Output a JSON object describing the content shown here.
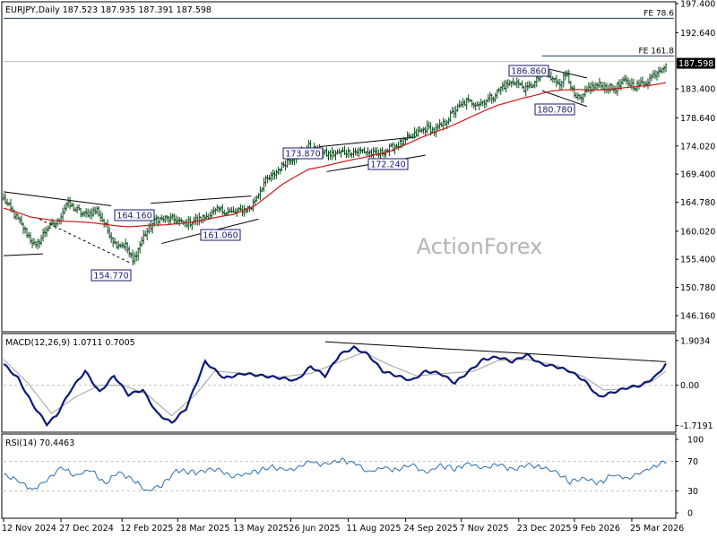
{
  "colors": {
    "bar": "#0a4a1a",
    "ma": "#d01818",
    "macd": "#0a1a78",
    "signal": "#a0a0a0",
    "rsi": "#2a6fb0",
    "label_fill": "#ffffff",
    "label_text": "#1a1a6e",
    "label_border": "#1a1a6e",
    "pattern_line": "#000000",
    "grid": "#c0c0c0",
    "watermark": "#b4b4b4"
  },
  "chart_data": [
    {
      "type": "ohlc",
      "title": "EURJPY,Daily  187.523 187.935 187.391 187.598",
      "symbol": "EURJPY",
      "timeframe": "Daily",
      "ohlc_last": {
        "open": 187.523,
        "high": 187.935,
        "low": 187.391,
        "close": 187.598
      },
      "last_price_label": "187.598",
      "watermark": "ActionForex",
      "ylim": [
        143.5,
        197.7
      ],
      "y_ticks": [
        "197.400",
        "192.640",
        "187.880",
        "183.400",
        "178.640",
        "174.020",
        "169.400",
        "164.780",
        "160.020",
        "155.400",
        "150.780",
        "146.160"
      ],
      "y_tick_values": [
        197.4,
        192.64,
        187.88,
        183.4,
        178.64,
        174.02,
        169.4,
        164.78,
        160.02,
        155.4,
        150.78,
        146.16
      ],
      "x_ticks": [
        "12 Nov 2024",
        "27 Dec 2024",
        "12 Feb 2025",
        "28 Mar 2025",
        "13 May 2025",
        "26 Jun 2025",
        "11 Aug 2025",
        "24 Sep 2025",
        "7 Nov 2025",
        "23 Dec 2025",
        "9 Feb 2026",
        "25 Mar 2026"
      ],
      "x_tick_bar_index": [
        0,
        32,
        66,
        97,
        129,
        160,
        192,
        224,
        255,
        287,
        318,
        350
      ],
      "bar_count": 370,
      "anchors": [
        [
          0,
          165.3
        ],
        [
          10,
          161.0
        ],
        [
          18,
          157.4
        ],
        [
          24,
          160.5
        ],
        [
          30,
          161.5
        ],
        [
          35,
          164.5
        ],
        [
          45,
          162.7
        ],
        [
          52,
          163.5
        ],
        [
          62,
          158.0
        ],
        [
          68,
          157.7
        ],
        [
          72,
          155.0
        ],
        [
          78,
          159.2
        ],
        [
          85,
          162.0
        ],
        [
          95,
          162.0
        ],
        [
          100,
          161.2
        ],
        [
          110,
          162.1
        ],
        [
          120,
          163.5
        ],
        [
          128,
          163.0
        ],
        [
          138,
          164.0
        ],
        [
          145,
          168.0
        ],
        [
          150,
          169.2
        ],
        [
          158,
          171.6
        ],
        [
          165,
          172.9
        ],
        [
          170,
          173.9
        ],
        [
          175,
          173.0
        ],
        [
          182,
          172.6
        ],
        [
          190,
          173.0
        ],
        [
          200,
          173.2
        ],
        [
          208,
          172.6
        ],
        [
          215,
          173.5
        ],
        [
          222,
          174.5
        ],
        [
          228,
          175.7
        ],
        [
          236,
          177.0
        ],
        [
          240,
          176.5
        ],
        [
          245,
          177.6
        ],
        [
          252,
          180.0
        ],
        [
          258,
          181.3
        ],
        [
          265,
          181.0
        ],
        [
          273,
          182.2
        ],
        [
          278,
          183.8
        ],
        [
          285,
          184.6
        ],
        [
          291,
          183.3
        ],
        [
          296,
          184.4
        ],
        [
          301,
          186.3
        ],
        [
          305,
          185.0
        ],
        [
          310,
          184.5
        ],
        [
          314,
          186.0
        ],
        [
          318,
          182.0
        ],
        [
          322,
          181.6
        ],
        [
          326,
          183.5
        ],
        [
          332,
          184.0
        ],
        [
          340,
          183.3
        ],
        [
          346,
          184.6
        ],
        [
          352,
          183.9
        ],
        [
          358,
          184.5
        ],
        [
          363,
          186.0
        ],
        [
          369,
          187.6
        ]
      ],
      "ma_anchors": [
        [
          0,
          163.8
        ],
        [
          15,
          162.3
        ],
        [
          30,
          161.8
        ],
        [
          50,
          161.3
        ],
        [
          70,
          160.8
        ],
        [
          90,
          161.0
        ],
        [
          110,
          161.8
        ],
        [
          128,
          162.7
        ],
        [
          140,
          164.3
        ],
        [
          155,
          167.6
        ],
        [
          170,
          170.2
        ],
        [
          185,
          171.2
        ],
        [
          200,
          172.0
        ],
        [
          215,
          173.2
        ],
        [
          230,
          175.0
        ],
        [
          245,
          176.8
        ],
        [
          260,
          178.8
        ],
        [
          275,
          180.6
        ],
        [
          290,
          182.0
        ],
        [
          305,
          183.0
        ],
        [
          320,
          183.3
        ],
        [
          335,
          183.3
        ],
        [
          350,
          183.6
        ],
        [
          362,
          184.1
        ],
        [
          369,
          184.5
        ]
      ],
      "annotations": [
        {
          "label": "164.160",
          "bar": 35,
          "price": 164.16
        },
        {
          "label": "161.060",
          "bar": 66,
          "price": 161.06
        },
        {
          "label": "154.770",
          "bar": 72,
          "price": 154.77
        },
        {
          "label": "173.870",
          "bar": 112,
          "price": 173.87
        },
        {
          "label": "172.240",
          "bar": 141,
          "price": 172.24
        },
        {
          "label": "186.860",
          "bar": 196,
          "price": 186.86
        },
        {
          "label": "180.780",
          "bar": 210,
          "price": 180.78
        }
      ],
      "fe_levels": [
        {
          "label": "FE 78.6",
          "price": 195.0
        },
        {
          "label": "FE 161.8",
          "price": 188.8
        }
      ],
      "last_price_ref": 187.88
    },
    {
      "type": "line",
      "title": "MACD(12,26,9) 1.0711 0.7005",
      "series": [
        {
          "name": "MACD",
          "role": "macd"
        },
        {
          "name": "Signal",
          "role": "signal"
        }
      ],
      "y_ticks": [
        "1.9034",
        "0.00",
        "-1.7191"
      ],
      "y_tick_values": [
        1.9034,
        0.0,
        -1.7191
      ],
      "ylim": [
        -2.0,
        2.2
      ],
      "macd_anchors": [
        [
          0,
          0.9
        ],
        [
          6,
          0.3
        ],
        [
          12,
          -0.8
        ],
        [
          18,
          -1.65
        ],
        [
          22,
          -1.3
        ],
        [
          28,
          -0.2
        ],
        [
          34,
          0.6
        ],
        [
          40,
          -0.3
        ],
        [
          46,
          0.4
        ],
        [
          52,
          -0.4
        ],
        [
          58,
          -0.2
        ],
        [
          64,
          -1.2
        ],
        [
          70,
          -1.6
        ],
        [
          76,
          -1.0
        ],
        [
          84,
          1.0
        ],
        [
          92,
          0.3
        ],
        [
          100,
          0.5
        ],
        [
          108,
          0.4
        ],
        [
          116,
          0.3
        ],
        [
          122,
          0.2
        ],
        [
          128,
          0.8
        ],
        [
          134,
          0.4
        ],
        [
          140,
          1.3
        ],
        [
          146,
          1.6
        ],
        [
          152,
          1.3
        ],
        [
          158,
          0.6
        ],
        [
          164,
          0.4
        ],
        [
          170,
          0.2
        ],
        [
          176,
          0.6
        ],
        [
          182,
          0.5
        ],
        [
          188,
          0.1
        ],
        [
          194,
          0.6
        ],
        [
          200,
          1.1
        ],
        [
          206,
          1.2
        ],
        [
          212,
          1.0
        ],
        [
          218,
          1.3
        ],
        [
          224,
          0.9
        ],
        [
          230,
          0.8
        ],
        [
          236,
          0.6
        ],
        [
          242,
          0.2
        ],
        [
          248,
          -0.5
        ],
        [
          254,
          -0.3
        ],
        [
          260,
          -0.1
        ],
        [
          266,
          0.0
        ],
        [
          272,
          0.4
        ],
        [
          276,
          0.9
        ]
      ],
      "signal_anchors": [
        [
          0,
          1.1
        ],
        [
          10,
          0.1
        ],
        [
          20,
          -1.2
        ],
        [
          30,
          -0.5
        ],
        [
          40,
          0.0
        ],
        [
          50,
          0.0
        ],
        [
          60,
          -0.4
        ],
        [
          70,
          -1.3
        ],
        [
          80,
          -0.4
        ],
        [
          88,
          0.6
        ],
        [
          100,
          0.5
        ],
        [
          115,
          0.35
        ],
        [
          128,
          0.5
        ],
        [
          140,
          1.0
        ],
        [
          150,
          1.4
        ],
        [
          160,
          0.9
        ],
        [
          172,
          0.4
        ],
        [
          184,
          0.5
        ],
        [
          196,
          0.6
        ],
        [
          206,
          1.05
        ],
        [
          218,
          1.1
        ],
        [
          230,
          0.85
        ],
        [
          242,
          0.35
        ],
        [
          250,
          -0.2
        ],
        [
          260,
          -0.15
        ],
        [
          270,
          0.15
        ],
        [
          276,
          0.6
        ]
      ],
      "trendline": {
        "from": [
          134,
          1.85
        ],
        "to": [
          276,
          1.0
        ]
      }
    },
    {
      "type": "line",
      "title": "RSI(14) 70.4463",
      "series": [
        {
          "name": "RSI(14)",
          "role": "rsi"
        }
      ],
      "y_ticks": [
        "100",
        "70",
        "30",
        "0"
      ],
      "y_tick_values": [
        100,
        70,
        30,
        0
      ],
      "ylim": [
        0,
        100
      ],
      "levels": [
        70,
        30
      ],
      "rsi_anchors": [
        [
          0,
          52
        ],
        [
          6,
          44
        ],
        [
          12,
          31
        ],
        [
          18,
          45
        ],
        [
          24,
          62
        ],
        [
          30,
          50
        ],
        [
          36,
          60
        ],
        [
          42,
          40
        ],
        [
          48,
          55
        ],
        [
          54,
          45
        ],
        [
          60,
          30
        ],
        [
          66,
          38
        ],
        [
          72,
          58
        ],
        [
          80,
          55
        ],
        [
          88,
          60
        ],
        [
          96,
          50
        ],
        [
          104,
          55
        ],
        [
          112,
          62
        ],
        [
          120,
          58
        ],
        [
          128,
          70
        ],
        [
          134,
          65
        ],
        [
          140,
          72
        ],
        [
          146,
          68
        ],
        [
          152,
          56
        ],
        [
          158,
          62
        ],
        [
          164,
          58
        ],
        [
          170,
          66
        ],
        [
          176,
          55
        ],
        [
          182,
          65
        ],
        [
          188,
          60
        ],
        [
          194,
          68
        ],
        [
          200,
          60
        ],
        [
          206,
          66
        ],
        [
          212,
          58
        ],
        [
          218,
          66
        ],
        [
          224,
          62
        ],
        [
          230,
          56
        ],
        [
          236,
          42
        ],
        [
          242,
          48
        ],
        [
          248,
          40
        ],
        [
          254,
          52
        ],
        [
          260,
          47
        ],
        [
          266,
          55
        ],
        [
          272,
          65
        ],
        [
          276,
          70
        ]
      ]
    }
  ]
}
